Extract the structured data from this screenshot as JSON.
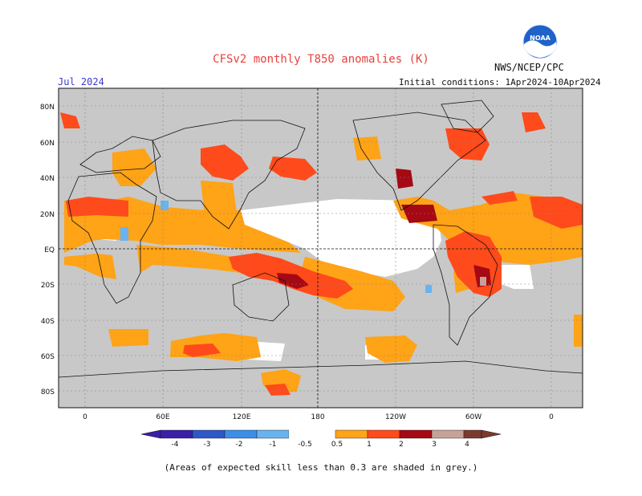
{
  "header": {
    "title": "CFSv2 monthly T850 anomalies (K)",
    "agency": "NWS/NCEP/CPC",
    "month": "Jul 2024",
    "initial_conditions": "Initial conditions: 1Apr2024-10Apr2024",
    "logo_text": "NOAA"
  },
  "map": {
    "lat_labels": [
      "80N",
      "60N",
      "40N",
      "20N",
      "EQ",
      "20S",
      "40S",
      "60S",
      "80S"
    ],
    "lat_values": [
      80,
      60,
      40,
      20,
      0,
      -20,
      -40,
      -60,
      -80
    ],
    "lon_labels": [
      "0",
      "60E",
      "120E",
      "180",
      "120W",
      "60W",
      "0"
    ],
    "lon_values": [
      0,
      60,
      120,
      180,
      240,
      300,
      360
    ],
    "lon_range": [
      -20,
      380
    ],
    "lat_range": [
      -90,
      90
    ],
    "ocean_color": "#c8c8c8"
  },
  "legend": {
    "labels": [
      "-4",
      "-3",
      "-2",
      "-1",
      "-0.5",
      "0.5",
      "1",
      "2",
      "3",
      "4"
    ],
    "colors": [
      "#3a1fa8",
      "#2e58c8",
      "#3d8ee6",
      "#68b3f0",
      "#ffffff",
      "#ffa317",
      "#ff4a1b",
      "#a50913",
      "#c6a296",
      "#7b3a2e"
    ],
    "units": "K"
  },
  "footer": {
    "note": "(Areas of expected skill less than 0.3 are shaded in grey.)"
  }
}
